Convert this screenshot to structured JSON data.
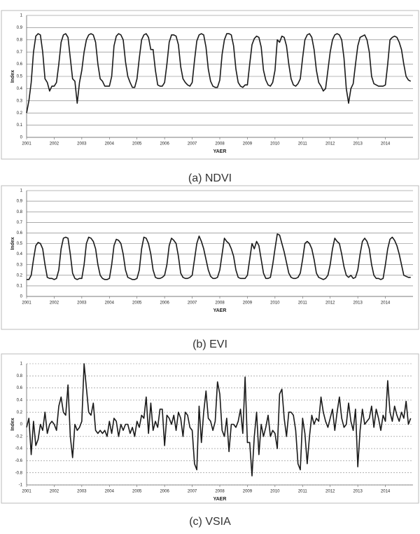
{
  "chart_data": [
    {
      "type": "line",
      "caption": "(a) NDVI",
      "y_label": "Index",
      "x_label": "YAER",
      "color": "#1a1a1a",
      "grid": true,
      "grid_style": "solid",
      "ylim": [
        0,
        1
      ],
      "yticks": [
        0,
        0.1,
        0.2,
        0.3,
        0.4,
        0.5,
        0.6,
        0.7,
        0.8,
        0.9,
        1
      ],
      "categories": [
        "2001",
        null,
        null,
        null,
        null,
        null,
        null,
        null,
        null,
        null,
        null,
        null,
        "2002",
        null,
        null,
        null,
        null,
        null,
        null,
        null,
        null,
        null,
        null,
        null,
        "2003",
        null,
        null,
        null,
        null,
        null,
        null,
        null,
        null,
        null,
        null,
        null,
        "2004",
        null,
        null,
        null,
        null,
        null,
        null,
        null,
        null,
        null,
        null,
        null,
        "2005",
        null,
        null,
        null,
        null,
        null,
        null,
        null,
        null,
        null,
        null,
        null,
        "2006",
        null,
        null,
        null,
        null,
        null,
        null,
        null,
        null,
        null,
        null,
        null,
        "2007",
        null,
        null,
        null,
        null,
        null,
        null,
        null,
        null,
        null,
        null,
        null,
        "2008",
        null,
        null,
        null,
        null,
        null,
        null,
        null,
        null,
        null,
        null,
        null,
        "2009",
        null,
        null,
        null,
        null,
        null,
        null,
        null,
        null,
        null,
        null,
        null,
        "2010",
        null,
        null,
        null,
        null,
        null,
        null,
        null,
        null,
        null,
        null,
        null,
        "2011",
        null,
        null,
        null,
        null,
        null,
        null,
        null,
        null,
        null,
        null,
        null,
        "2012",
        null,
        null,
        null,
        null,
        null,
        null,
        null,
        null,
        null,
        null,
        null,
        "2013",
        null,
        null,
        null,
        null,
        null,
        null,
        null,
        null,
        null,
        null,
        null,
        "2014",
        null,
        null,
        null,
        null,
        null,
        null,
        null,
        null,
        null,
        null,
        null
      ],
      "values": [
        0.2,
        0.3,
        0.45,
        0.7,
        0.83,
        0.85,
        0.84,
        0.7,
        0.48,
        0.45,
        0.38,
        0.42,
        0.42,
        0.45,
        0.6,
        0.78,
        0.84,
        0.85,
        0.82,
        0.65,
        0.48,
        0.46,
        0.28,
        0.45,
        0.55,
        0.7,
        0.8,
        0.84,
        0.85,
        0.84,
        0.78,
        0.6,
        0.48,
        0.46,
        0.42,
        0.42,
        0.42,
        0.5,
        0.75,
        0.83,
        0.85,
        0.84,
        0.8,
        0.62,
        0.5,
        0.45,
        0.41,
        0.41,
        0.48,
        0.65,
        0.8,
        0.84,
        0.85,
        0.82,
        0.72,
        0.72,
        0.55,
        0.43,
        0.42,
        0.42,
        0.45,
        0.6,
        0.78,
        0.84,
        0.84,
        0.83,
        0.76,
        0.58,
        0.48,
        0.45,
        0.43,
        0.42,
        0.45,
        0.63,
        0.79,
        0.84,
        0.85,
        0.84,
        0.74,
        0.56,
        0.46,
        0.42,
        0.41,
        0.41,
        0.47,
        0.68,
        0.8,
        0.85,
        0.85,
        0.84,
        0.75,
        0.56,
        0.45,
        0.42,
        0.41,
        0.43,
        0.43,
        0.6,
        0.76,
        0.81,
        0.83,
        0.82,
        0.74,
        0.55,
        0.47,
        0.43,
        0.42,
        0.45,
        0.55,
        0.8,
        0.78,
        0.83,
        0.82,
        0.75,
        0.6,
        0.48,
        0.43,
        0.42,
        0.44,
        0.48,
        0.65,
        0.8,
        0.84,
        0.85,
        0.82,
        0.72,
        0.55,
        0.45,
        0.42,
        0.38,
        0.4,
        0.55,
        0.7,
        0.8,
        0.84,
        0.85,
        0.84,
        0.8,
        0.65,
        0.4,
        0.28,
        0.4,
        0.44,
        0.6,
        0.75,
        0.82,
        0.83,
        0.84,
        0.8,
        0.7,
        0.5,
        0.44,
        0.43,
        0.42,
        0.42,
        0.42,
        0.43,
        0.6,
        0.8,
        0.82,
        0.83,
        0.82,
        0.78,
        0.72,
        0.6,
        0.5,
        0.47,
        0.46
      ]
    },
    {
      "type": "line",
      "caption": "(b) EVI",
      "y_label": "Index",
      "x_label": "YAER",
      "color": "#1a1a1a",
      "grid": true,
      "grid_style": "solid",
      "ylim": [
        0,
        1
      ],
      "yticks": [
        0,
        0.1,
        0.2,
        0.3,
        0.4,
        0.5,
        0.6,
        0.7,
        0.8,
        0.9,
        1
      ],
      "categories": [
        "2001",
        null,
        null,
        null,
        null,
        null,
        null,
        null,
        null,
        null,
        null,
        null,
        "2002",
        null,
        null,
        null,
        null,
        null,
        null,
        null,
        null,
        null,
        null,
        null,
        "2003",
        null,
        null,
        null,
        null,
        null,
        null,
        null,
        null,
        null,
        null,
        null,
        "2004",
        null,
        null,
        null,
        null,
        null,
        null,
        null,
        null,
        null,
        null,
        null,
        "2005",
        null,
        null,
        null,
        null,
        null,
        null,
        null,
        null,
        null,
        null,
        null,
        "2006",
        null,
        null,
        null,
        null,
        null,
        null,
        null,
        null,
        null,
        null,
        null,
        "2007",
        null,
        null,
        null,
        null,
        null,
        null,
        null,
        null,
        null,
        null,
        null,
        "2008",
        null,
        null,
        null,
        null,
        null,
        null,
        null,
        null,
        null,
        null,
        null,
        "2009",
        null,
        null,
        null,
        null,
        null,
        null,
        null,
        null,
        null,
        null,
        null,
        "2010",
        null,
        null,
        null,
        null,
        null,
        null,
        null,
        null,
        null,
        null,
        null,
        "2011",
        null,
        null,
        null,
        null,
        null,
        null,
        null,
        null,
        null,
        null,
        null,
        "2012",
        null,
        null,
        null,
        null,
        null,
        null,
        null,
        null,
        null,
        null,
        null,
        "2013",
        null,
        null,
        null,
        null,
        null,
        null,
        null,
        null,
        null,
        null,
        null,
        "2014",
        null,
        null,
        null,
        null,
        null,
        null,
        null,
        null,
        null,
        null,
        null
      ],
      "values": [
        0.16,
        0.16,
        0.2,
        0.35,
        0.48,
        0.51,
        0.5,
        0.45,
        0.3,
        0.18,
        0.17,
        0.17,
        0.16,
        0.17,
        0.25,
        0.45,
        0.55,
        0.56,
        0.55,
        0.4,
        0.22,
        0.17,
        0.16,
        0.17,
        0.17,
        0.3,
        0.5,
        0.56,
        0.55,
        0.52,
        0.45,
        0.3,
        0.2,
        0.17,
        0.16,
        0.16,
        0.17,
        0.3,
        0.48,
        0.54,
        0.53,
        0.5,
        0.4,
        0.25,
        0.18,
        0.17,
        0.16,
        0.16,
        0.17,
        0.25,
        0.45,
        0.56,
        0.55,
        0.5,
        0.4,
        0.25,
        0.18,
        0.17,
        0.17,
        0.18,
        0.2,
        0.3,
        0.48,
        0.55,
        0.53,
        0.5,
        0.38,
        0.22,
        0.18,
        0.17,
        0.17,
        0.18,
        0.2,
        0.35,
        0.5,
        0.57,
        0.52,
        0.45,
        0.35,
        0.25,
        0.19,
        0.17,
        0.17,
        0.18,
        0.25,
        0.4,
        0.55,
        0.52,
        0.5,
        0.45,
        0.38,
        0.25,
        0.18,
        0.17,
        0.17,
        0.17,
        0.2,
        0.35,
        0.5,
        0.45,
        0.52,
        0.48,
        0.35,
        0.22,
        0.17,
        0.17,
        0.18,
        0.3,
        0.45,
        0.59,
        0.58,
        0.5,
        0.42,
        0.32,
        0.22,
        0.18,
        0.17,
        0.17,
        0.18,
        0.22,
        0.35,
        0.5,
        0.52,
        0.5,
        0.45,
        0.35,
        0.22,
        0.18,
        0.17,
        0.16,
        0.17,
        0.2,
        0.3,
        0.45,
        0.55,
        0.52,
        0.5,
        0.4,
        0.28,
        0.2,
        0.18,
        0.2,
        0.17,
        0.18,
        0.25,
        0.4,
        0.52,
        0.55,
        0.52,
        0.45,
        0.3,
        0.2,
        0.17,
        0.17,
        0.16,
        0.17,
        0.3,
        0.45,
        0.54,
        0.56,
        0.53,
        0.48,
        0.4,
        0.3,
        0.2,
        0.19,
        0.18,
        0.18
      ]
    },
    {
      "type": "line",
      "caption": "(c) VSIA",
      "y_label": "Index",
      "x_label": "YAER",
      "color": "#1a1a1a",
      "grid": true,
      "grid_style": "dashed",
      "ylim": [
        -1,
        1
      ],
      "yticks": [
        -1,
        -0.8,
        -0.6,
        -0.4,
        -0.2,
        0,
        0.2,
        0.4,
        0.6,
        0.8,
        1
      ],
      "categories": [
        "2001",
        null,
        null,
        null,
        null,
        null,
        null,
        null,
        null,
        null,
        null,
        null,
        "2002",
        null,
        null,
        null,
        null,
        null,
        null,
        null,
        null,
        null,
        null,
        null,
        "2003",
        null,
        null,
        null,
        null,
        null,
        null,
        null,
        null,
        null,
        null,
        null,
        "2004",
        null,
        null,
        null,
        null,
        null,
        null,
        null,
        null,
        null,
        null,
        null,
        "2005",
        null,
        null,
        null,
        null,
        null,
        null,
        null,
        null,
        null,
        null,
        null,
        "2006",
        null,
        null,
        null,
        null,
        null,
        null,
        null,
        null,
        null,
        null,
        null,
        "2007",
        null,
        null,
        null,
        null,
        null,
        null,
        null,
        null,
        null,
        null,
        null,
        "2008",
        null,
        null,
        null,
        null,
        null,
        null,
        null,
        null,
        null,
        null,
        null,
        "2009",
        null,
        null,
        null,
        null,
        null,
        null,
        null,
        null,
        null,
        null,
        null,
        "2010",
        null,
        null,
        null,
        null,
        null,
        null,
        null,
        null,
        null,
        null,
        null,
        "2011",
        null,
        null,
        null,
        null,
        null,
        null,
        null,
        null,
        null,
        null,
        null,
        "2012",
        null,
        null,
        null,
        null,
        null,
        null,
        null,
        null,
        null,
        null,
        null,
        "2013",
        null,
        null,
        null,
        null,
        null,
        null,
        null,
        null,
        null,
        null,
        null,
        "2014",
        null,
        null,
        null,
        null,
        null,
        null,
        null,
        null,
        null,
        null,
        null
      ],
      "values": [
        -0.05,
        0.1,
        -0.5,
        0.05,
        -0.35,
        -0.25,
        0,
        -0.1,
        0.2,
        -0.15,
        0,
        0.05,
        0,
        -0.1,
        0.3,
        0.45,
        0.2,
        0.15,
        0.65,
        -0.2,
        -0.55,
        0,
        -0.1,
        -0.05,
        0.05,
        1,
        0.6,
        0.2,
        0.15,
        0.35,
        -0.1,
        -0.15,
        -0.1,
        -0.15,
        -0.1,
        -0.2,
        0.05,
        -0.15,
        0.1,
        0.05,
        -0.2,
        0,
        -0.1,
        0,
        0,
        -0.15,
        -0.05,
        -0.2,
        0.05,
        -0.05,
        0.15,
        0.1,
        0.45,
        -0.15,
        0.35,
        -0.1,
        0.05,
        -0.05,
        0.25,
        0.25,
        -0.35,
        0.15,
        0.1,
        0,
        0.15,
        -0.1,
        0.2,
        0.1,
        -0.2,
        0.2,
        0.15,
        -0.05,
        -0.1,
        -0.65,
        -0.75,
        0.3,
        -0.3,
        0.2,
        0.55,
        0.1,
        0.05,
        -0.1,
        0.05,
        0.7,
        0.5,
        -0.1,
        -0.2,
        0.1,
        -0.45,
        0,
        0,
        -0.05,
        0.05,
        0.25,
        -0.15,
        0.78,
        -0.3,
        -0.3,
        -0.85,
        -0.2,
        0.2,
        -0.5,
        0,
        -0.2,
        -0.05,
        0.15,
        -0.2,
        -0.1,
        -0.15,
        -0.4,
        0.5,
        0.58,
        0.1,
        -0.2,
        0.2,
        0.2,
        0.15,
        -0.1,
        -0.65,
        -0.75,
        0.1,
        -0.15,
        -0.65,
        -0.2,
        0.15,
        0,
        0.1,
        0.05,
        0.45,
        0.2,
        0.05,
        -0.05,
        0.1,
        0.25,
        -0.1,
        0.2,
        0.45,
        0.1,
        -0.05,
        0,
        0.35,
        0.05,
        -0.1,
        0.25,
        -0.7,
        -0.1,
        0.25,
        0,
        0.05,
        0.1,
        0.3,
        -0.05,
        0.25,
        0.1,
        -0.1,
        0.15,
        0.05,
        0.72,
        0.2,
        0.05,
        0.3,
        0.15,
        0.05,
        0.2,
        0.1,
        0.38,
        0,
        0.1
      ]
    }
  ]
}
